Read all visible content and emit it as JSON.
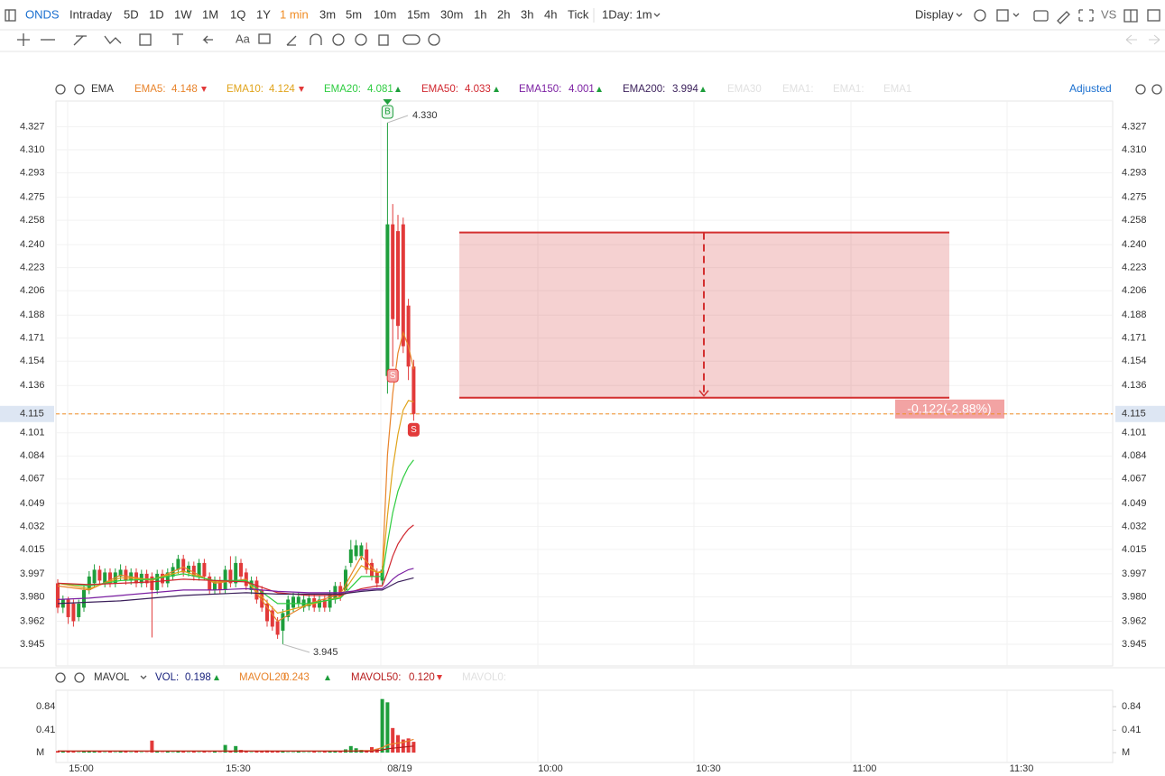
{
  "toolbar": {
    "symbol": "ONDS",
    "periods": [
      "Intraday",
      "5D",
      "1D",
      "1W",
      "1M",
      "1Q",
      "1Y",
      "1 min",
      "3m",
      "5m",
      "10m",
      "15m",
      "30m",
      "1h",
      "2h",
      "3h",
      "4h",
      "Tick"
    ],
    "active_period": 7,
    "interval": "1Day: 1m",
    "display": "Display",
    "vs": "VS",
    "text_tool": "Aa"
  },
  "ema_legend": {
    "title": "EMA",
    "items": [
      {
        "name": "EMA5:",
        "value": "4.148",
        "trend": "down",
        "color": "#e8832a"
      },
      {
        "name": "EMA10:",
        "value": "4.124",
        "trend": "down",
        "color": "#e0a31a"
      },
      {
        "name": "EMA20:",
        "value": "4.081",
        "trend": "up",
        "color": "#2ecc40"
      },
      {
        "name": "EMA50:",
        "value": "4.033",
        "trend": "up",
        "color": "#d0262e"
      },
      {
        "name": "EMA150:",
        "value": "4.001",
        "trend": "up",
        "color": "#7b1fa2"
      },
      {
        "name": "EMA200:",
        "value": "3.994",
        "trend": "up",
        "color": "#3a1f5a"
      }
    ],
    "hidden": [
      "EMA30",
      "EMA1:",
      "EMA1:",
      "EMA1"
    ],
    "adjusted": "Adjusted"
  },
  "chart_data": {
    "type": "candlestick",
    "ylim": [
      3.929,
      4.346
    ],
    "yticks": [
      4.327,
      {
        "value": 4.31,
        "label": "4.310"
      },
      4.293,
      4.275,
      4.258,
      {
        "value": 4.24,
        "label": "4.240"
      },
      4.223,
      4.206,
      4.188,
      4.171,
      4.154,
      4.136,
      4.115,
      4.101,
      4.084,
      4.067,
      4.049,
      4.032,
      4.015,
      3.997,
      {
        "value": 3.98,
        "label": "3.980"
      },
      3.962,
      3.945
    ],
    "grid": true,
    "up_color": "#1e9e3c",
    "down_color": "#e23a3a",
    "last_price": 4.115,
    "high_label": {
      "value": 4.33,
      "label": "4.330"
    },
    "low_label": 3.945,
    "time_labels": [
      "15:00",
      "15:30",
      "08/19",
      "10:00",
      "10:30",
      "11:00",
      "11:30"
    ],
    "open": [
      3.99,
      3.972,
      3.978,
      3.975,
      3.965,
      3.972,
      3.985,
      3.99,
      4.0,
      3.99,
      3.998,
      3.99,
      3.995,
      4.0,
      3.992,
      3.998,
      3.99,
      3.997,
      3.995,
      3.985,
      3.997,
      3.99,
      3.995,
      4.0,
      4.008,
      3.998,
      4.003,
      3.995,
      4.005,
      3.995,
      3.985,
      3.992,
      3.985,
      4.0,
      3.99,
      4.005,
      3.998,
      3.985,
      3.992,
      3.985,
      3.975,
      3.97,
      3.962,
      3.955,
      3.965,
      3.972,
      3.975,
      3.972,
      3.973,
      3.979,
      3.972,
      3.978,
      3.972,
      3.978,
      3.988,
      3.985,
      4.005,
      4.01,
      4.01,
      4.015,
      4.005,
      3.998,
      3.992,
      4.143,
      4.255,
      4.25,
      4.255,
      4.195,
      4.15
    ],
    "high": [
      3.993,
      3.981,
      3.98,
      3.978,
      3.978,
      3.988,
      3.999,
      4.004,
      4.003,
      4.001,
      4.001,
      4.001,
      4.004,
      4.003,
      4.001,
      4.001,
      4.0,
      4.0,
      3.998,
      4.0,
      4.0,
      4.001,
      4.005,
      4.011,
      4.011,
      4.006,
      4.006,
      4.008,
      4.008,
      3.998,
      3.995,
      3.995,
      4.003,
      4.01,
      4.01,
      4.008,
      4.001,
      3.995,
      3.995,
      3.988,
      3.978,
      3.973,
      3.965,
      3.971,
      3.981,
      3.983,
      3.983,
      3.981,
      3.982,
      3.982,
      3.981,
      3.981,
      3.985,
      3.991,
      3.991,
      4.003,
      4.022,
      4.022,
      4.02,
      4.02,
      4.008,
      4.001,
      4.003,
      4.33,
      4.27,
      4.262,
      4.26,
      4.2,
      4.155
    ],
    "low": [
      3.968,
      3.968,
      3.96,
      3.958,
      3.962,
      3.969,
      3.982,
      3.987,
      3.989,
      3.987,
      3.987,
      3.987,
      3.992,
      3.989,
      3.989,
      3.987,
      3.987,
      3.987,
      3.95,
      3.982,
      3.987,
      3.987,
      3.992,
      3.997,
      3.995,
      3.995,
      3.992,
      3.992,
      3.992,
      3.982,
      3.982,
      3.982,
      3.982,
      3.987,
      3.987,
      3.992,
      3.985,
      3.982,
      3.975,
      3.969,
      3.958,
      3.955,
      3.949,
      3.945,
      3.962,
      3.969,
      3.972,
      3.969,
      3.97,
      3.969,
      3.969,
      3.969,
      3.969,
      3.975,
      3.977,
      3.982,
      4.002,
      4.007,
      4.007,
      3.997,
      3.992,
      3.987,
      3.989,
      4.13,
      4.15,
      4.17,
      4.16,
      4.14,
      4.11
    ],
    "close": [
      3.972,
      3.978,
      3.965,
      3.962,
      3.975,
      3.985,
      3.995,
      4.0,
      3.992,
      3.998,
      3.99,
      3.998,
      4.0,
      3.992,
      3.998,
      3.99,
      3.997,
      3.99,
      3.985,
      3.997,
      3.99,
      3.998,
      4.002,
      4.008,
      3.998,
      4.003,
      3.995,
      4.005,
      3.995,
      3.985,
      3.992,
      3.985,
      4.0,
      3.99,
      4.005,
      3.995,
      3.988,
      3.992,
      3.978,
      3.972,
      3.962,
      3.958,
      3.952,
      3.968,
      3.978,
      3.98,
      3.98,
      3.978,
      3.979,
      3.972,
      3.978,
      3.972,
      3.982,
      3.988,
      3.98,
      4.0,
      4.015,
      4.018,
      4.018,
      4.0,
      3.995,
      3.99,
      4.0,
      4.255,
      4.185,
      4.18,
      4.165,
      4.15,
      4.115
    ],
    "ema_x": [
      0,
      6,
      12,
      18,
      24,
      30,
      36,
      42,
      48,
      54,
      58,
      61,
      62,
      63,
      64,
      65,
      66,
      67,
      68
    ],
    "ema": [
      {
        "name": "EMA5",
        "color": "#e8832a",
        "values": [
          3.988,
          3.985,
          3.996,
          3.992,
          4.002,
          3.99,
          3.993,
          3.962,
          3.975,
          3.982,
          4.01,
          3.998,
          3.999,
          4.085,
          4.13,
          4.16,
          4.175,
          4.165,
          4.148
        ]
      },
      {
        "name": "EMA10",
        "color": "#e0a31a",
        "values": [
          3.99,
          3.986,
          3.994,
          3.993,
          3.999,
          3.991,
          3.992,
          3.968,
          3.974,
          3.98,
          4.003,
          3.998,
          3.998,
          4.04,
          4.075,
          4.1,
          4.118,
          4.125,
          4.124
        ]
      },
      {
        "name": "EMA20",
        "color": "#2ecc40",
        "values": [
          3.99,
          3.988,
          3.992,
          3.993,
          3.997,
          3.992,
          3.992,
          3.975,
          3.975,
          3.979,
          3.995,
          3.995,
          3.995,
          4.02,
          4.042,
          4.058,
          4.068,
          4.076,
          4.081
        ]
      },
      {
        "name": "EMA50",
        "color": "#d0262e",
        "values": [
          3.99,
          3.989,
          3.99,
          3.991,
          3.993,
          3.992,
          3.991,
          3.983,
          3.981,
          3.981,
          3.986,
          3.988,
          3.988,
          3.998,
          4.01,
          4.019,
          4.025,
          4.03,
          4.033
        ]
      },
      {
        "name": "EMA150",
        "color": "#7b1fa2",
        "values": [
          3.978,
          3.979,
          3.981,
          3.983,
          3.985,
          3.985,
          3.986,
          3.984,
          3.983,
          3.983,
          3.985,
          3.986,
          3.986,
          3.989,
          3.993,
          3.996,
          3.998,
          4.0,
          4.001
        ]
      },
      {
        "name": "EMA200",
        "color": "#3a1f5a",
        "values": [
          3.975,
          3.976,
          3.977,
          3.979,
          3.981,
          3.982,
          3.983,
          3.982,
          3.982,
          3.982,
          3.984,
          3.985,
          3.985,
          3.987,
          3.989,
          3.991,
          3.992,
          3.993,
          3.994
        ]
      }
    ],
    "markers": [
      {
        "label": "B",
        "index": 63,
        "side": "above",
        "color": "#1e9e3c"
      },
      {
        "label": "S",
        "index": 64,
        "side": "below",
        "color": "#f4a0a0"
      },
      {
        "label": "S",
        "index": 68,
        "side": "below",
        "color": "#e23a3a"
      }
    ],
    "measure": {
      "top": 4.249,
      "bottom": 4.127,
      "label": "-0.122(-2.88%)",
      "color": "#d32f2f"
    },
    "volume": {
      "title": "MAVOL",
      "items": [
        {
          "name": "VOL:",
          "value": "0.198",
          "trend": "up",
          "color": "#1a237e"
        },
        {
          "name": "MAVOL20:",
          "value": "0.243",
          "trend": "up",
          "color": "#e8832a"
        },
        {
          "name": "MAVOL50:",
          "value": "0.120",
          "trend": "down",
          "color": "#b71c1c"
        }
      ],
      "hidden": [
        "MAVOL0:"
      ],
      "ylim": [
        -0.18,
        1.14
      ],
      "yticks": [
        {
          "value": 0,
          "label": "M"
        },
        0.41,
        0.84
      ],
      "values": [
        0.03,
        0.02,
        0.03,
        0.02,
        0.01,
        0.02,
        0.03,
        0.02,
        0.02,
        0.01,
        0.02,
        0.01,
        0.02,
        0.02,
        0.01,
        0.02,
        0.01,
        0.01,
        0.22,
        0.02,
        0.01,
        0.02,
        0.01,
        0.03,
        0.02,
        0.01,
        0.02,
        0.01,
        0.02,
        0.01,
        0.02,
        0.01,
        0.14,
        0.03,
        0.12,
        0.05,
        0.02,
        0.01,
        0.03,
        0.02,
        0.04,
        0.02,
        0.03,
        0.02,
        0.01,
        0.01,
        0.02,
        0.01,
        0.01,
        0.02,
        0.01,
        0.02,
        0.02,
        0.03,
        0.02,
        0.06,
        0.12,
        0.08,
        0.05,
        0.03,
        0.1,
        0.07,
        0.98,
        0.92,
        0.45,
        0.32,
        0.24,
        0.26,
        0.198
      ],
      "mavol_x": [
        0,
        20,
        40,
        55,
        60,
        62,
        63,
        64,
        66,
        68
      ],
      "mavol": [
        {
          "name": "MAVOL20",
          "color": "#e8832a",
          "values": [
            0.03,
            0.03,
            0.03,
            0.03,
            0.04,
            0.09,
            0.14,
            0.16,
            0.19,
            0.243
          ]
        },
        {
          "name": "MAVOL50",
          "color": "#b71c1c",
          "values": [
            0.03,
            0.03,
            0.03,
            0.03,
            0.03,
            0.05,
            0.07,
            0.08,
            0.1,
            0.12
          ]
        }
      ]
    }
  }
}
